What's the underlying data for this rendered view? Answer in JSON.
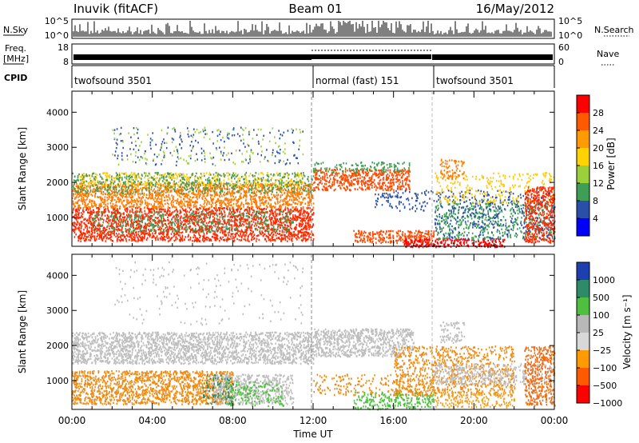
{
  "header": {
    "station": "Inuvik (fitACF)",
    "beam": "Beam 01",
    "date": "16/May/2012"
  },
  "strips": {
    "nsky_label": "N.Sky",
    "nsearch_label": "N.Search",
    "nsky_ticks": [
      "10^5",
      "10^0"
    ],
    "nsearch_ticks": [
      "10^5",
      "10^0"
    ],
    "freq_label": "Freq.",
    "freq_unit": "[MHz]",
    "freq_ticks": [
      "18",
      "8"
    ],
    "nave_label": "Nave",
    "nave_ticks": [
      "60",
      "0"
    ],
    "cpid_label": "CPID",
    "cpid_segments": [
      {
        "name": "twofsound 3501",
        "start_h": 0,
        "end_h": 12
      },
      {
        "name": "normal (fast) 151",
        "start_h": 12,
        "end_h": 18
      },
      {
        "name": "twofsound 3501",
        "start_h": 18,
        "end_h": 24
      }
    ]
  },
  "chart_data": [
    {
      "type": "heatmap",
      "panel": "power",
      "ylabel": "Slant Range [km]",
      "xlabel": "",
      "ylim": [
        180,
        4600
      ],
      "xlim_h": [
        0,
        24
      ],
      "ytick_values": [
        1000,
        2000,
        3000,
        4000
      ],
      "colorbar_label": "Power [dB]",
      "colorbar_ticks": [
        "28",
        "24",
        "20",
        "16",
        "12",
        "8",
        "4"
      ],
      "colorbar_colors": [
        "#ff0000",
        "#ff5a00",
        "#ff9a00",
        "#ffd200",
        "#9ccf3c",
        "#3e9e55",
        "#2a4fa8",
        "#0000ff"
      ],
      "bands": [
        {
          "t0": 0.0,
          "t1": 12.0,
          "r0": 350,
          "r1": 1300,
          "color": "#ff2a00",
          "density": 0.9
        },
        {
          "t0": 0.0,
          "t1": 12.0,
          "r0": 1300,
          "r1": 2000,
          "color": "#ff7a00",
          "density": 0.85
        },
        {
          "t0": 0.3,
          "t1": 11.5,
          "r0": 1900,
          "r1": 2300,
          "color": "#ffc800",
          "density": 0.45
        },
        {
          "t0": 0.0,
          "t1": 12.0,
          "r0": 1700,
          "r1": 2300,
          "color": "#4a9c55",
          "density": 0.35
        },
        {
          "t0": 1.0,
          "t1": 11.0,
          "r0": 600,
          "r1": 1200,
          "color": "#3e9e55",
          "density": 0.3
        },
        {
          "t0": 2.0,
          "t1": 11.5,
          "r0": 2500,
          "r1": 3600,
          "color": "#2a4fa8",
          "density": 0.08
        },
        {
          "t0": 2.0,
          "t1": 11.5,
          "r0": 2500,
          "r1": 3600,
          "color": "#9ccf3c",
          "density": 0.06
        },
        {
          "t0": 12.0,
          "t1": 16.8,
          "r0": 1800,
          "r1": 2400,
          "color": "#ff4a00",
          "density": 0.85
        },
        {
          "t0": 12.0,
          "t1": 16.8,
          "r0": 2300,
          "r1": 2600,
          "color": "#3e9e55",
          "density": 0.4
        },
        {
          "t0": 14.0,
          "t1": 18.0,
          "r0": 300,
          "r1": 650,
          "color": "#ff4a00",
          "density": 0.85
        },
        {
          "t0": 16.5,
          "t1": 21.5,
          "r0": 180,
          "r1": 420,
          "color": "#ff0000",
          "density": 0.95
        },
        {
          "t0": 18.0,
          "t1": 24.0,
          "r0": 400,
          "r1": 1500,
          "color": "#3e9e55",
          "density": 0.35
        },
        {
          "t0": 18.0,
          "t1": 24.0,
          "r0": 400,
          "r1": 1800,
          "color": "#2a4fa8",
          "density": 0.2
        },
        {
          "t0": 18.0,
          "t1": 24.0,
          "r0": 1400,
          "r1": 2300,
          "color": "#ffc800",
          "density": 0.2
        },
        {
          "t0": 18.3,
          "t1": 19.5,
          "r0": 2100,
          "r1": 2700,
          "color": "#ff7a00",
          "density": 0.5
        },
        {
          "t0": 22.5,
          "t1": 24.0,
          "r0": 300,
          "r1": 1900,
          "color": "#ff2a00",
          "density": 0.75
        },
        {
          "t0": 15.0,
          "t1": 18.0,
          "r0": 1200,
          "r1": 1800,
          "color": "#2a4fa8",
          "density": 0.25
        }
      ]
    },
    {
      "type": "heatmap",
      "panel": "velocity",
      "ylabel": "Slant Range [km]",
      "xlabel": "Time UT",
      "ylim": [
        180,
        4600
      ],
      "xlim_h": [
        0,
        24
      ],
      "ytick_values": [
        1000,
        2000,
        3000,
        4000
      ],
      "xtick_labels": [
        "00:00",
        "04:00",
        "08:00",
        "12:00",
        "16:00",
        "20:00",
        "00:00"
      ],
      "colorbar_label": "Velocity [m s⁻¹]",
      "colorbar_ticks": [
        "1000",
        "500",
        "100",
        "25",
        "−25",
        "−100",
        "−500",
        "−1000"
      ],
      "colorbar_colors": [
        "#1e3fb0",
        "#2f8a6a",
        "#4fbf3f",
        "#b8b8b8",
        "#d8d8d8",
        "#ff9a00",
        "#ff5a00",
        "#ff0000"
      ],
      "bands": [
        {
          "t0": 0.0,
          "t1": 12.0,
          "r0": 1500,
          "r1": 2400,
          "color": "#bdbdbd",
          "density": 0.9
        },
        {
          "t0": 0.0,
          "t1": 8.0,
          "r0": 350,
          "r1": 1300,
          "color": "#f08a10",
          "density": 0.85
        },
        {
          "t0": 7.0,
          "t1": 11.0,
          "r0": 350,
          "r1": 1200,
          "color": "#bdbdbd",
          "density": 0.7
        },
        {
          "t0": 7.5,
          "t1": 10.5,
          "r0": 300,
          "r1": 1000,
          "color": "#4fbf3f",
          "density": 0.35
        },
        {
          "t0": 6.5,
          "t1": 8.0,
          "r0": 350,
          "r1": 1200,
          "color": "#2f8a6a",
          "density": 0.3
        },
        {
          "t0": 2.0,
          "t1": 11.5,
          "r0": 2600,
          "r1": 4400,
          "color": "#bdbdbd",
          "density": 0.05
        },
        {
          "t0": 12.0,
          "t1": 17.0,
          "r0": 1700,
          "r1": 2500,
          "color": "#bdbdbd",
          "density": 0.85
        },
        {
          "t0": 14.0,
          "t1": 18.0,
          "r0": 200,
          "r1": 700,
          "color": "#4fbf3f",
          "density": 0.55
        },
        {
          "t0": 12.0,
          "t1": 18.0,
          "r0": 600,
          "r1": 1200,
          "color": "#f08a10",
          "density": 0.25
        },
        {
          "t0": 16.0,
          "t1": 22.0,
          "r0": 600,
          "r1": 2000,
          "color": "#f08a10",
          "density": 0.45
        },
        {
          "t0": 18.0,
          "t1": 24.0,
          "r0": 900,
          "r1": 1500,
          "color": "#bdbdbd",
          "density": 0.5
        },
        {
          "t0": 18.0,
          "t1": 22.0,
          "r0": 250,
          "r1": 700,
          "color": "#f0a020",
          "density": 0.45
        },
        {
          "t0": 22.5,
          "t1": 24.0,
          "r0": 300,
          "r1": 2000,
          "color": "#f06a10",
          "density": 0.65
        },
        {
          "t0": 18.3,
          "t1": 19.5,
          "r0": 2100,
          "r1": 2700,
          "color": "#bdbdbd",
          "density": 0.5
        }
      ]
    }
  ]
}
